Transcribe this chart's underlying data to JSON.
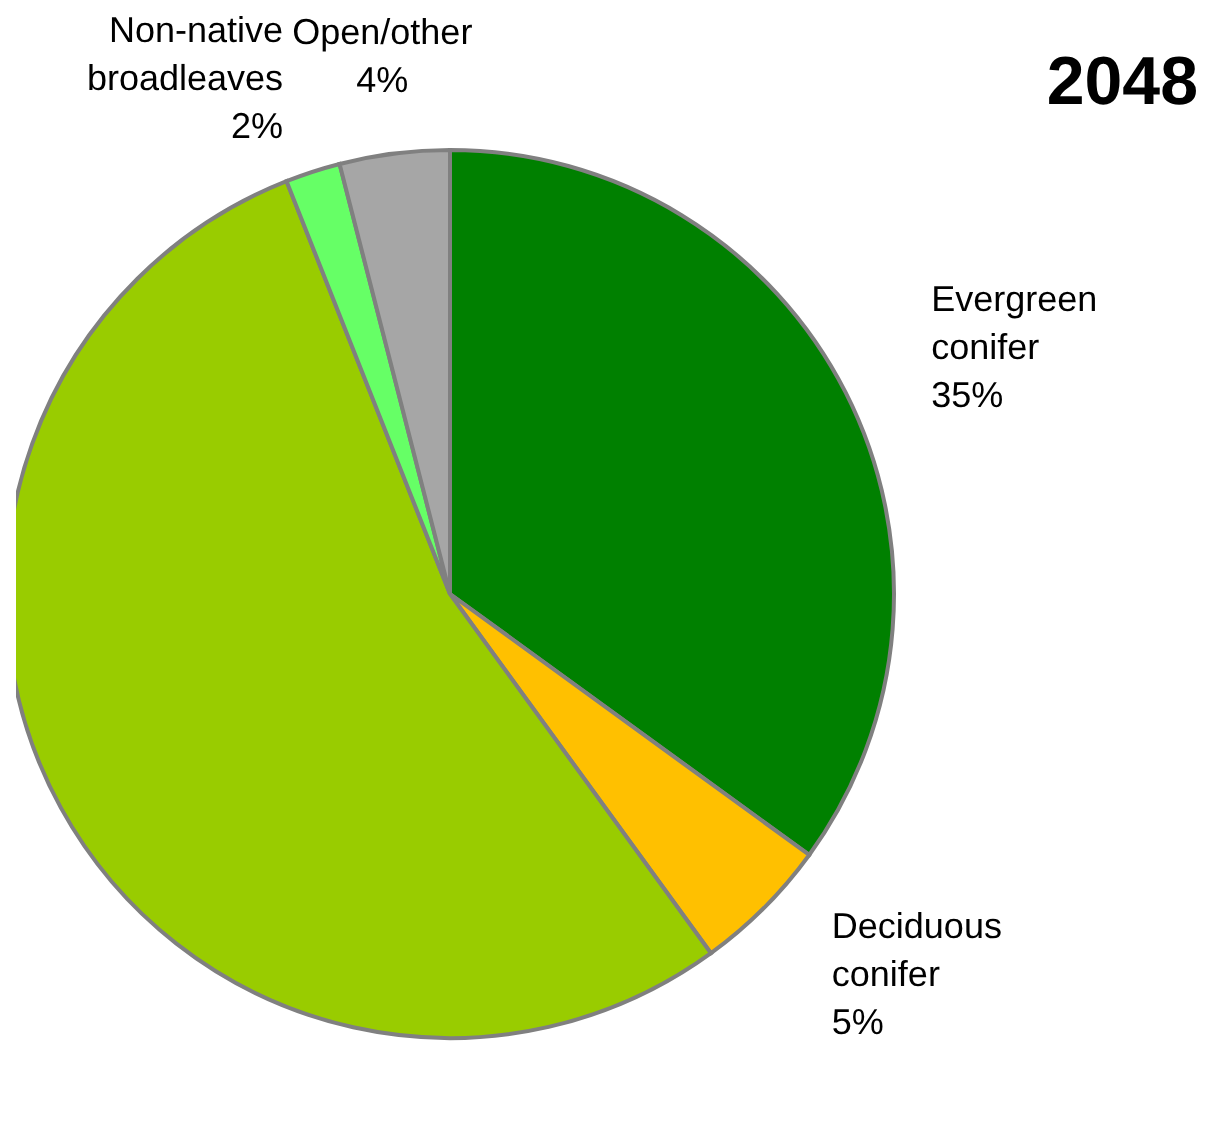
{
  "chart_data": {
    "type": "pie",
    "title": "2048",
    "categories": [
      "Evergreen\nconifer",
      "Deciduous\nconifer",
      null,
      "Non-native\nbroadleaves",
      "Open/other"
    ],
    "values": [
      35,
      5,
      54,
      2,
      4
    ],
    "value_labels": [
      "35%",
      "5%",
      null,
      "2%",
      "4%"
    ],
    "colors": [
      "#008000",
      "#ffc000",
      "#99cc00",
      "#66ff66",
      "#a6a6a6"
    ],
    "legend": false
  }
}
